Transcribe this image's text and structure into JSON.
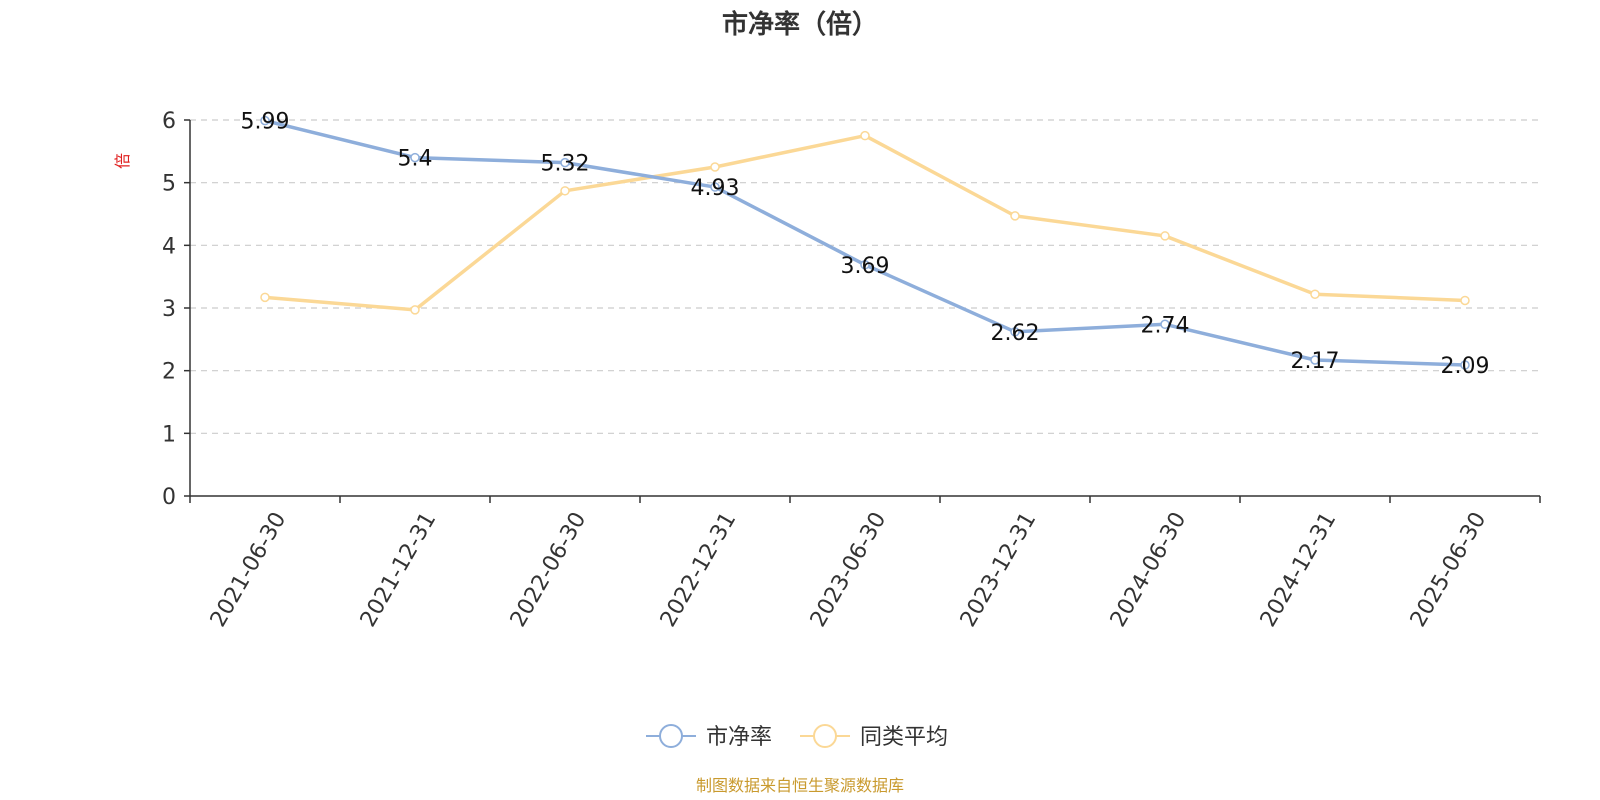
{
  "chart_data": {
    "type": "line",
    "title": "市净率（倍）",
    "ylabel": "倍",
    "xlabel": "",
    "categories": [
      "2021-06-30",
      "2021-12-31",
      "2022-06-30",
      "2022-12-31",
      "2023-06-30",
      "2023-12-31",
      "2024-06-30",
      "2024-12-31",
      "2025-06-30"
    ],
    "ylim": [
      0,
      6
    ],
    "yticks": [
      "0",
      "1",
      "2",
      "3",
      "4",
      "5",
      "6"
    ],
    "grid": true,
    "legend_position": "bottom-center",
    "series": [
      {
        "name": "市净率",
        "color": "#8eaedb",
        "values": [
          5.99,
          5.4,
          5.32,
          4.93,
          3.69,
          2.62,
          2.74,
          2.17,
          2.09
        ],
        "labels": [
          "5.99",
          "5.4",
          "5.32",
          "4.93",
          "3.69",
          "2.62",
          "2.74",
          "2.17",
          "2.09"
        ]
      },
      {
        "name": "同类平均",
        "color": "#fbd896",
        "values": [
          3.17,
          2.97,
          4.87,
          5.25,
          5.75,
          4.47,
          4.15,
          3.22,
          3.12
        ]
      }
    ],
    "footer": "制图数据来自恒生聚源数据库"
  }
}
